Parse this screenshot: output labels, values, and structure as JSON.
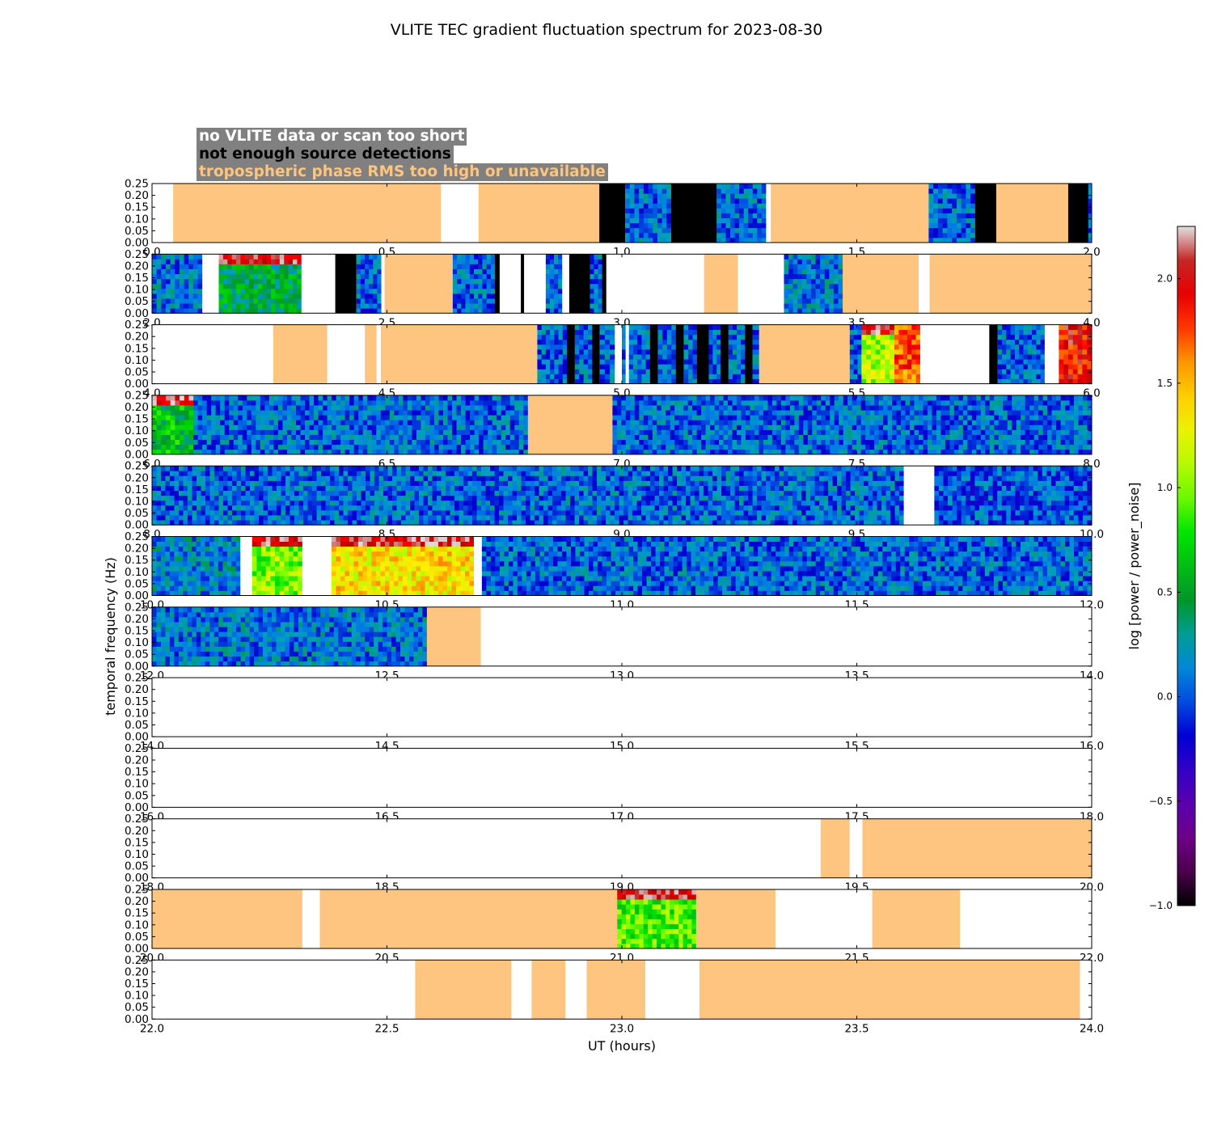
{
  "page": {
    "title": "VLITE TEC gradient fluctuation spectrum for 2023-08-30",
    "legend": [
      {
        "text": "no VLITE data or scan too short",
        "color": "#ffffff"
      },
      {
        "text": "not enough source detections",
        "color": "#000000"
      },
      {
        "text": "tropospheric phase RMS too high or unavailable",
        "color": "#fdc57f"
      }
    ]
  },
  "chart_data": {
    "type": "heatmap",
    "title": "VLITE TEC gradient fluctuation spectrum for 2023-08-30",
    "xlabel": "UT (hours)",
    "ylabel": "temporal frequency (Hz)",
    "colorbar_label": "log [power / power_noise]",
    "colorbar_range": [
      -1.0,
      2.25
    ],
    "colorbar_ticks": [
      "-1.0",
      "-0.5",
      "0.0",
      "0.5",
      "1.0",
      "1.5",
      "2.0"
    ],
    "ylim": [
      0,
      0.25
    ],
    "ytick_labels": [
      "0.00",
      "0.05",
      "0.10",
      "0.15",
      "0.20",
      "0.25"
    ],
    "panel_hours": 2,
    "status_colors": {
      "nodata": "#ffffff",
      "nodetect": "#000000",
      "tropo": "#fdc57f"
    },
    "panels": [
      {
        "xlim": [
          0,
          2
        ],
        "xticks": [
          "0.0",
          "0.5",
          "1.0",
          "1.5",
          "2.0"
        ],
        "segments": [
          {
            "start": 0.0,
            "end": 0.045,
            "status": "nodata"
          },
          {
            "start": 0.045,
            "end": 0.615,
            "status": "tropo"
          },
          {
            "start": 0.615,
            "end": 0.695,
            "status": "nodata"
          },
          {
            "start": 0.695,
            "end": 0.952,
            "status": "tropo"
          },
          {
            "start": 0.952,
            "end": 1.007,
            "status": "nodetect"
          },
          {
            "start": 1.007,
            "end": 1.105,
            "status": "spectrum",
            "level": 0.05
          },
          {
            "start": 1.105,
            "end": 1.202,
            "status": "nodetect"
          },
          {
            "start": 1.202,
            "end": 1.307,
            "status": "spectrum",
            "level": 0.05
          },
          {
            "start": 1.307,
            "end": 1.317,
            "status": "nodata"
          },
          {
            "start": 1.317,
            "end": 1.653,
            "status": "tropo"
          },
          {
            "start": 1.653,
            "end": 1.752,
            "status": "spectrum",
            "level": 0.05
          },
          {
            "start": 1.752,
            "end": 1.797,
            "status": "nodetect"
          },
          {
            "start": 1.797,
            "end": 1.95,
            "status": "tropo"
          },
          {
            "start": 1.95,
            "end": 1.993,
            "status": "nodetect"
          },
          {
            "start": 1.993,
            "end": 2.0,
            "status": "spectrum",
            "level": 0.05
          }
        ]
      },
      {
        "xlim": [
          2,
          4
        ],
        "xticks": [
          "2.0",
          "2.5",
          "3.0",
          "3.5",
          "4.0"
        ],
        "segments": [
          {
            "start": 2.0,
            "end": 2.107,
            "status": "spectrum",
            "level": 0.1
          },
          {
            "start": 2.107,
            "end": 2.142,
            "status": "nodata"
          },
          {
            "start": 2.142,
            "end": 2.318,
            "status": "spectrum",
            "level": 0.45,
            "low_band": 0.15
          },
          {
            "start": 2.318,
            "end": 2.39,
            "status": "nodata"
          },
          {
            "start": 2.39,
            "end": 2.435,
            "status": "nodetect"
          },
          {
            "start": 2.435,
            "end": 2.488,
            "status": "spectrum",
            "level": 0.05
          },
          {
            "start": 2.488,
            "end": 2.495,
            "status": "nodata"
          },
          {
            "start": 2.495,
            "end": 2.64,
            "status": "tropo"
          },
          {
            "start": 2.64,
            "end": 2.73,
            "status": "spectrum",
            "level": 0.05
          },
          {
            "start": 2.73,
            "end": 2.74,
            "status": "nodetect"
          },
          {
            "start": 2.74,
            "end": 2.785,
            "status": "nodata"
          },
          {
            "start": 2.785,
            "end": 2.792,
            "status": "nodetect"
          },
          {
            "start": 2.792,
            "end": 2.838,
            "status": "nodata"
          },
          {
            "start": 2.838,
            "end": 2.873,
            "status": "spectrum",
            "level": 0.05
          },
          {
            "start": 2.873,
            "end": 2.888,
            "status": "nodata"
          },
          {
            "start": 2.888,
            "end": 2.932,
            "status": "nodetect"
          },
          {
            "start": 2.932,
            "end": 2.958,
            "status": "spectrum",
            "level": 0.05
          },
          {
            "start": 2.958,
            "end": 2.967,
            "status": "nodetect"
          },
          {
            "start": 2.967,
            "end": 3.175,
            "status": "nodata"
          },
          {
            "start": 3.175,
            "end": 3.247,
            "status": "tropo"
          },
          {
            "start": 3.247,
            "end": 3.345,
            "status": "nodata"
          },
          {
            "start": 3.345,
            "end": 3.47,
            "status": "spectrum",
            "level": 0.1
          },
          {
            "start": 3.47,
            "end": 3.632,
            "status": "tropo"
          },
          {
            "start": 3.632,
            "end": 3.655,
            "status": "nodata"
          },
          {
            "start": 3.655,
            "end": 4.0,
            "status": "tropo"
          }
        ]
      },
      {
        "xlim": [
          4,
          6
        ],
        "xticks": [
          "4.0",
          "4.5",
          "5.0",
          "5.5",
          "6.0"
        ],
        "segments": [
          {
            "start": 4.0,
            "end": 4.258,
            "status": "nodata"
          },
          {
            "start": 4.258,
            "end": 4.373,
            "status": "tropo"
          },
          {
            "start": 4.373,
            "end": 4.453,
            "status": "nodata"
          },
          {
            "start": 4.453,
            "end": 4.478,
            "status": "tropo"
          },
          {
            "start": 4.478,
            "end": 4.487,
            "status": "nodata"
          },
          {
            "start": 4.487,
            "end": 4.82,
            "status": "tropo"
          },
          {
            "start": 4.82,
            "end": 4.883,
            "status": "spectrum",
            "level": 0.05
          },
          {
            "start": 4.883,
            "end": 4.9,
            "status": "nodetect"
          },
          {
            "start": 4.9,
            "end": 4.937,
            "status": "spectrum",
            "level": 0.05
          },
          {
            "start": 4.937,
            "end": 4.953,
            "status": "nodetect"
          },
          {
            "start": 4.953,
            "end": 4.985,
            "status": "spectrum",
            "level": 0.05
          },
          {
            "start": 4.985,
            "end": 5.0,
            "status": "nodata"
          },
          {
            "start": 5.0,
            "end": 5.008,
            "status": "spectrum",
            "level": 0.05
          },
          {
            "start": 5.008,
            "end": 5.015,
            "status": "nodata"
          },
          {
            "start": 5.015,
            "end": 5.06,
            "status": "spectrum",
            "level": 0.05
          },
          {
            "start": 5.06,
            "end": 5.077,
            "status": "nodetect"
          },
          {
            "start": 5.077,
            "end": 5.115,
            "status": "spectrum",
            "level": 0.05
          },
          {
            "start": 5.115,
            "end": 5.132,
            "status": "nodetect"
          },
          {
            "start": 5.132,
            "end": 5.16,
            "status": "spectrum",
            "level": 0.05
          },
          {
            "start": 5.16,
            "end": 5.185,
            "status": "nodetect"
          },
          {
            "start": 5.185,
            "end": 5.21,
            "status": "spectrum",
            "level": 0.05
          },
          {
            "start": 5.21,
            "end": 5.227,
            "status": "nodetect"
          },
          {
            "start": 5.227,
            "end": 5.262,
            "status": "spectrum",
            "level": 0.05
          },
          {
            "start": 5.262,
            "end": 5.278,
            "status": "nodetect"
          },
          {
            "start": 5.278,
            "end": 5.292,
            "status": "spectrum",
            "level": 0.05
          },
          {
            "start": 5.292,
            "end": 5.485,
            "status": "tropo"
          },
          {
            "start": 5.485,
            "end": 5.51,
            "status": "spectrum",
            "level": 0.05
          },
          {
            "start": 5.51,
            "end": 5.58,
            "status": "spectrum",
            "level": 1.1,
            "low_band": 0.2
          },
          {
            "start": 5.58,
            "end": 5.635,
            "status": "spectrum",
            "level": 1.7
          },
          {
            "start": 5.635,
            "end": 5.782,
            "status": "nodata"
          },
          {
            "start": 5.782,
            "end": 5.8,
            "status": "nodetect"
          },
          {
            "start": 5.8,
            "end": 5.9,
            "status": "spectrum",
            "level": 0.05
          },
          {
            "start": 5.9,
            "end": 5.93,
            "status": "nodata"
          },
          {
            "start": 5.93,
            "end": 6.0,
            "status": "spectrum",
            "level": 1.9
          }
        ]
      },
      {
        "xlim": [
          6,
          8
        ],
        "xticks": [
          "6.0",
          "6.5",
          "7.0",
          "7.5",
          "8.0"
        ],
        "segments": [
          {
            "start": 6.0,
            "end": 6.088,
            "status": "spectrum",
            "level": 0.6,
            "low_band": 0.25
          },
          {
            "start": 6.088,
            "end": 6.8,
            "status": "spectrum",
            "level": 0.05
          },
          {
            "start": 6.8,
            "end": 6.98,
            "status": "tropo"
          },
          {
            "start": 6.98,
            "end": 8.0,
            "status": "spectrum",
            "level": 0.05
          }
        ]
      },
      {
        "xlim": [
          8,
          10
        ],
        "xticks": [
          "8.0",
          "8.5",
          "9.0",
          "9.5",
          "10.0"
        ],
        "segments": [
          {
            "start": 8.0,
            "end": 9.6,
            "status": "spectrum",
            "level": 0.05
          },
          {
            "start": 9.6,
            "end": 9.665,
            "status": "nodata"
          },
          {
            "start": 9.665,
            "end": 10.0,
            "status": "spectrum",
            "level": 0.0
          }
        ]
      },
      {
        "xlim": [
          10,
          12
        ],
        "xticks": [
          "10.0",
          "10.5",
          "11.0",
          "11.5",
          "12.0"
        ],
        "segments": [
          {
            "start": 10.0,
            "end": 10.188,
            "status": "spectrum",
            "level": 0.15
          },
          {
            "start": 10.188,
            "end": 10.213,
            "status": "nodata"
          },
          {
            "start": 10.213,
            "end": 10.32,
            "status": "spectrum",
            "level": 1.0,
            "low_band": 0.2
          },
          {
            "start": 10.32,
            "end": 10.382,
            "status": "nodata"
          },
          {
            "start": 10.382,
            "end": 10.685,
            "status": "spectrum",
            "level": 1.35,
            "low_band": 0.3
          },
          {
            "start": 10.685,
            "end": 10.702,
            "status": "nodata"
          },
          {
            "start": 10.702,
            "end": 12.0,
            "status": "spectrum",
            "level": 0.05
          }
        ]
      },
      {
        "xlim": [
          12,
          14
        ],
        "xticks": [
          "12.0",
          "12.5",
          "13.0",
          "13.5",
          "14.0"
        ],
        "segments": [
          {
            "start": 12.0,
            "end": 12.585,
            "status": "spectrum",
            "level": 0.1
          },
          {
            "start": 12.585,
            "end": 12.7,
            "status": "tropo"
          },
          {
            "start": 12.7,
            "end": 14.0,
            "status": "nodata"
          }
        ]
      },
      {
        "xlim": [
          14,
          16
        ],
        "xticks": [
          "14.0",
          "14.5",
          "15.0",
          "15.5",
          "16.0"
        ],
        "segments": [
          {
            "start": 14.0,
            "end": 16.0,
            "status": "nodata"
          }
        ]
      },
      {
        "xlim": [
          16,
          18
        ],
        "xticks": [
          "16.0",
          "16.5",
          "17.0",
          "17.5",
          "18.0"
        ],
        "segments": [
          {
            "start": 16.0,
            "end": 18.0,
            "status": "nodata"
          }
        ]
      },
      {
        "xlim": [
          18,
          20
        ],
        "xticks": [
          "18.0",
          "18.5",
          "19.0",
          "19.5",
          "20.0"
        ],
        "segments": [
          {
            "start": 18.0,
            "end": 19.423,
            "status": "nodata"
          },
          {
            "start": 19.423,
            "end": 19.485,
            "status": "tropo"
          },
          {
            "start": 19.485,
            "end": 19.512,
            "status": "nodata"
          },
          {
            "start": 19.512,
            "end": 20.0,
            "status": "tropo"
          }
        ]
      },
      {
        "xlim": [
          20,
          22
        ],
        "xticks": [
          "20.0",
          "20.5",
          "21.0",
          "21.5",
          "22.0"
        ],
        "segments": [
          {
            "start": 20.0,
            "end": 20.32,
            "status": "tropo"
          },
          {
            "start": 20.32,
            "end": 20.357,
            "status": "nodata"
          },
          {
            "start": 20.357,
            "end": 20.99,
            "status": "tropo"
          },
          {
            "start": 20.99,
            "end": 21.158,
            "status": "spectrum",
            "level": 0.9,
            "low_band": 0.2
          },
          {
            "start": 21.158,
            "end": 21.327,
            "status": "tropo"
          },
          {
            "start": 21.327,
            "end": 21.533,
            "status": "nodata"
          },
          {
            "start": 21.533,
            "end": 21.72,
            "status": "tropo"
          },
          {
            "start": 21.72,
            "end": 22.0,
            "status": "nodata"
          }
        ]
      },
      {
        "xlim": [
          22,
          24
        ],
        "xticks": [
          "22.0",
          "22.5",
          "23.0",
          "23.5",
          "24.0"
        ],
        "segments": [
          {
            "start": 22.0,
            "end": 22.56,
            "status": "nodata"
          },
          {
            "start": 22.56,
            "end": 22.765,
            "status": "tropo"
          },
          {
            "start": 22.765,
            "end": 22.808,
            "status": "nodata"
          },
          {
            "start": 22.808,
            "end": 22.88,
            "status": "tropo"
          },
          {
            "start": 22.88,
            "end": 22.925,
            "status": "nodata"
          },
          {
            "start": 22.925,
            "end": 23.05,
            "status": "tropo"
          },
          {
            "start": 23.05,
            "end": 23.165,
            "status": "nodata"
          },
          {
            "start": 23.165,
            "end": 23.975,
            "status": "tropo"
          },
          {
            "start": 23.975,
            "end": 24.0,
            "status": "nodata"
          }
        ]
      }
    ]
  }
}
